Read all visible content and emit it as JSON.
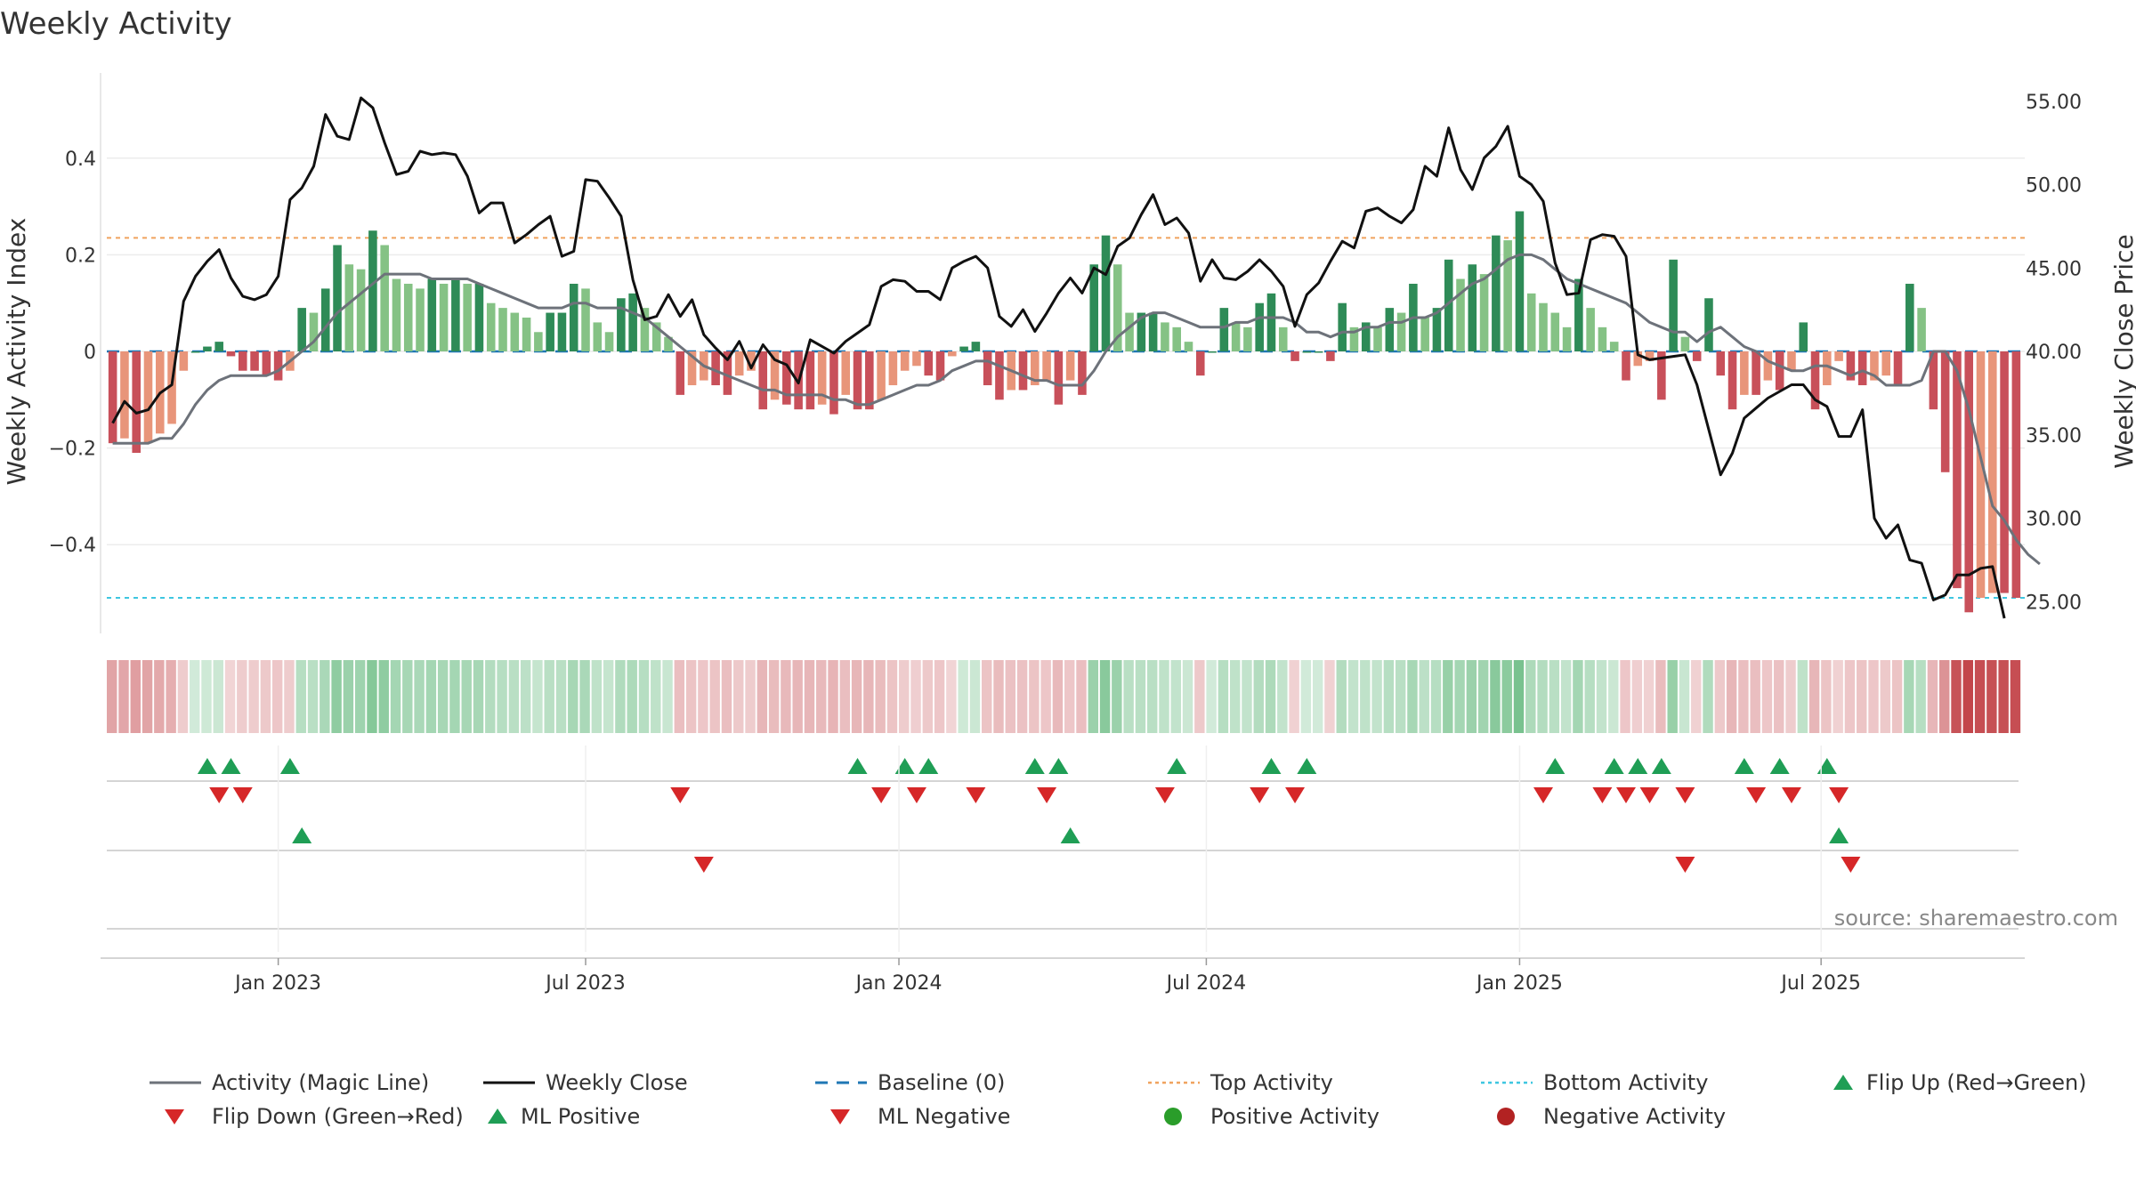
{
  "chart_data": {
    "type": "bar+line",
    "title": "Weekly Activity",
    "ylabel_left": "Weekly Activity Index",
    "ylabel_right": "Weekly Close Price",
    "left_ticks": [
      {
        "v": 0.4,
        "label": "0.4"
      },
      {
        "v": 0.2,
        "label": "0.2"
      },
      {
        "v": 0,
        "label": "0"
      },
      {
        "v": -0.2,
        "label": "−0.2"
      },
      {
        "v": -0.4,
        "label": "−0.4"
      }
    ],
    "right_ticks": [
      {
        "v": 55,
        "label": "55.00"
      },
      {
        "v": 50,
        "label": "50.00"
      },
      {
        "v": 45,
        "label": "45.00"
      },
      {
        "v": 40,
        "label": "40.00"
      },
      {
        "v": 35,
        "label": "35.00"
      },
      {
        "v": 30,
        "label": "30.00"
      },
      {
        "v": 25,
        "label": "25.00"
      }
    ],
    "left_range": [
      -0.58,
      0.58
    ],
    "right_range": [
      23.2,
      56.8
    ],
    "top_activity": 0.235,
    "bottom_activity": -0.51,
    "baseline": 0,
    "x_ticks": [
      "Jan 2023",
      "Jul 2023",
      "Jan 2024",
      "Jul 2024",
      "Jan 2025",
      "Jul 2025"
    ],
    "x_tick_weeks": [
      14.5,
      40.5,
      67,
      93,
      119.5,
      145
    ],
    "activity": [
      -0.19,
      -0.18,
      -0.21,
      -0.19,
      -0.17,
      -0.15,
      -0.04,
      0.0,
      0.01,
      0.02,
      -0.01,
      -0.04,
      -0.04,
      -0.05,
      -0.06,
      -0.04,
      0.09,
      0.08,
      0.13,
      0.22,
      0.18,
      0.17,
      0.25,
      0.22,
      0.15,
      0.14,
      0.13,
      0.15,
      0.14,
      0.15,
      0.14,
      0.14,
      0.1,
      0.09,
      0.08,
      0.07,
      0.04,
      0.08,
      0.08,
      0.14,
      0.13,
      0.06,
      0.04,
      0.11,
      0.12,
      0.09,
      0.06,
      0.03,
      -0.09,
      -0.07,
      -0.06,
      -0.07,
      -0.09,
      -0.05,
      -0.04,
      -0.12,
      -0.1,
      -0.11,
      -0.12,
      -0.12,
      -0.11,
      -0.13,
      -0.09,
      -0.12,
      -0.12,
      -0.1,
      -0.07,
      -0.04,
      -0.03,
      -0.05,
      -0.06,
      -0.01,
      0.01,
      0.02,
      -0.07,
      -0.1,
      -0.08,
      -0.08,
      -0.07,
      -0.06,
      -0.11,
      -0.06,
      -0.09,
      0.18,
      0.24,
      0.18,
      0.08,
      0.08,
      0.08,
      0.06,
      0.05,
      0.02,
      -0.05,
      0.0,
      0.09,
      0.06,
      0.05,
      0.1,
      0.12,
      0.05,
      -0.02,
      0.0,
      0.0,
      -0.02,
      0.1,
      0.05,
      0.06,
      0.05,
      0.09,
      0.08,
      0.14,
      0.07,
      0.09,
      0.19,
      0.15,
      0.18,
      0.16,
      0.24,
      0.23,
      0.29,
      0.12,
      0.1,
      0.08,
      0.05,
      0.15,
      0.09,
      0.05,
      0.02,
      -0.06,
      -0.03,
      -0.02,
      -0.1,
      0.19,
      0.03,
      -0.02,
      0.11,
      -0.05,
      -0.12,
      -0.09,
      -0.09,
      -0.06,
      -0.08,
      -0.04,
      0.06,
      -0.12,
      -0.07,
      -0.02,
      -0.06,
      -0.07,
      -0.06,
      -0.05,
      -0.07,
      0.14,
      0.09,
      -0.12,
      -0.25,
      -0.49,
      -0.54,
      -0.51,
      -0.5,
      -0.5,
      -0.51
    ],
    "magic_line": [
      -0.19,
      -0.19,
      -0.19,
      -0.19,
      -0.18,
      -0.18,
      -0.15,
      -0.11,
      -0.08,
      -0.06,
      -0.05,
      -0.05,
      -0.05,
      -0.05,
      -0.04,
      -0.02,
      0.0,
      0.02,
      0.05,
      0.08,
      0.1,
      0.12,
      0.14,
      0.16,
      0.16,
      0.16,
      0.16,
      0.15,
      0.15,
      0.15,
      0.15,
      0.14,
      0.13,
      0.12,
      0.11,
      0.1,
      0.09,
      0.09,
      0.09,
      0.1,
      0.1,
      0.09,
      0.09,
      0.09,
      0.08,
      0.07,
      0.05,
      0.03,
      0.01,
      -0.01,
      -0.03,
      -0.04,
      -0.05,
      -0.06,
      -0.07,
      -0.08,
      -0.08,
      -0.09,
      -0.09,
      -0.09,
      -0.09,
      -0.1,
      -0.1,
      -0.11,
      -0.11,
      -0.1,
      -0.09,
      -0.08,
      -0.07,
      -0.07,
      -0.06,
      -0.04,
      -0.03,
      -0.02,
      -0.02,
      -0.03,
      -0.04,
      -0.05,
      -0.06,
      -0.06,
      -0.07,
      -0.07,
      -0.07,
      -0.04,
      0.0,
      0.03,
      0.05,
      0.07,
      0.08,
      0.08,
      0.07,
      0.06,
      0.05,
      0.05,
      0.05,
      0.06,
      0.06,
      0.07,
      0.07,
      0.07,
      0.06,
      0.04,
      0.04,
      0.03,
      0.04,
      0.04,
      0.05,
      0.05,
      0.06,
      0.06,
      0.07,
      0.07,
      0.08,
      0.1,
      0.12,
      0.14,
      0.15,
      0.17,
      0.19,
      0.2,
      0.2,
      0.19,
      0.17,
      0.15,
      0.14,
      0.13,
      0.12,
      0.11,
      0.1,
      0.08,
      0.06,
      0.05,
      0.04,
      0.04,
      0.02,
      0.04,
      0.05,
      0.03,
      0.01,
      0.0,
      -0.02,
      -0.03,
      -0.04,
      -0.04,
      -0.03,
      -0.03,
      -0.04,
      -0.05,
      -0.04,
      -0.05,
      -0.07,
      -0.07,
      -0.07,
      -0.06,
      0.0,
      0.0,
      -0.04,
      -0.12,
      -0.22,
      -0.32,
      -0.35,
      -0.39,
      -0.42,
      -0.44
    ],
    "weekly_close": [
      35.7,
      37.0,
      36.3,
      36.5,
      37.5,
      38.0,
      43.0,
      44.5,
      45.4,
      46.1,
      44.4,
      43.3,
      43.1,
      43.4,
      44.5,
      49.1,
      49.8,
      51.1,
      54.2,
      52.9,
      52.7,
      55.2,
      54.6,
      52.5,
      50.6,
      50.8,
      52.0,
      51.8,
      51.9,
      51.8,
      50.5,
      48.3,
      48.9,
      48.9,
      46.5,
      47.0,
      47.6,
      48.1,
      45.7,
      46.0,
      50.3,
      50.2,
      49.2,
      48.1,
      44.3,
      41.9,
      42.1,
      43.4,
      42.1,
      43.1,
      41.0,
      40.2,
      39.5,
      40.6,
      39.0,
      40.4,
      39.5,
      39.2,
      38.1,
      40.7,
      40.3,
      39.9,
      40.6,
      41.1,
      41.6,
      43.9,
      44.3,
      44.2,
      43.6,
      43.6,
      43.1,
      45.0,
      45.4,
      45.7,
      45.0,
      42.1,
      41.5,
      42.5,
      41.2,
      42.3,
      43.5,
      44.4,
      43.5,
      45.0,
      44.6,
      46.3,
      46.8,
      48.2,
      49.4,
      47.6,
      48.0,
      47.1,
      44.2,
      45.5,
      44.4,
      44.3,
      44.8,
      45.5,
      44.8,
      43.9,
      41.5,
      43.4,
      44.1,
      45.4,
      46.6,
      46.2,
      48.4,
      48.6,
      48.1,
      47.7,
      48.5,
      51.1,
      50.5,
      53.4,
      50.9,
      49.7,
      51.6,
      52.3,
      53.5,
      50.5,
      50.0,
      49.0,
      45.3,
      43.4,
      43.5,
      46.7,
      47.0,
      46.9,
      45.7,
      39.8,
      39.5,
      39.6,
      39.7,
      39.8,
      38.0,
      35.3,
      32.6,
      33.9,
      36.0,
      36.6,
      37.2,
      37.6,
      38.0,
      38.0,
      37.1,
      36.7,
      34.9,
      34.9,
      36.5,
      30.0,
      28.8,
      29.6,
      27.5,
      27.3,
      25.1,
      25.4,
      26.6,
      26.6,
      27.0,
      27.1,
      24.0
    ],
    "flip_up": [
      8,
      10,
      15,
      63,
      67,
      69,
      78,
      80,
      90,
      98,
      101,
      122,
      127,
      129,
      131,
      138,
      141,
      145
    ],
    "flip_down": [
      9,
      11,
      48,
      65,
      68,
      73,
      79,
      89,
      97,
      100,
      121,
      126,
      128,
      130,
      133,
      139,
      142,
      146
    ],
    "ml_positive": [
      16,
      81,
      146
    ],
    "ml_negative": [
      50,
      133,
      147
    ],
    "source": "source: sharemaestro.com",
    "legend": [
      "Activity (Magic Line)",
      "Weekly Close",
      "Baseline (0)",
      "Top Activity",
      "Bottom Activity",
      "Flip Up (Red→Green)",
      "Flip Down (Green→Red)",
      "ML Positive",
      "ML Negative",
      "Positive Activity",
      "Negative Activity"
    ]
  },
  "colors": {
    "pos_dark": "#2e8b57",
    "pos_light": "#85c285",
    "neg_dark": "#c8505a",
    "neg_light": "#e8957a",
    "magic": "#6d727a",
    "close": "#111111",
    "baseline": "#1f77b4",
    "top": "#f0a35e",
    "bottom": "#3ec6e0",
    "tri_up": "#1f9e55",
    "tri_down": "#d62728",
    "dot_pos": "#2a9d2a",
    "dot_neg": "#b22222"
  }
}
